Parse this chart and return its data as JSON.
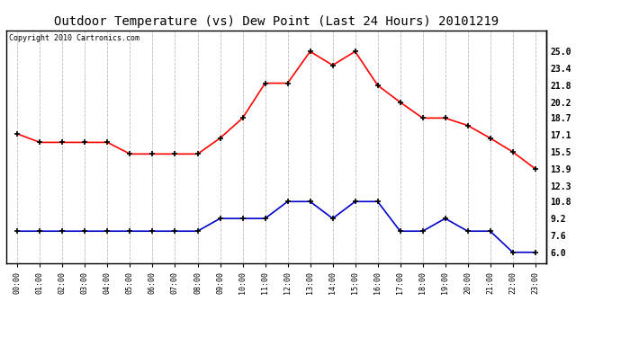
{
  "title": "Outdoor Temperature (vs) Dew Point (Last 24 Hours) 20101219",
  "copyright_text": "Copyright 2010 Cartronics.com",
  "x_labels": [
    "00:00",
    "01:00",
    "02:00",
    "03:00",
    "04:00",
    "05:00",
    "06:00",
    "07:00",
    "08:00",
    "09:00",
    "10:00",
    "11:00",
    "12:00",
    "13:00",
    "14:00",
    "15:00",
    "16:00",
    "17:00",
    "18:00",
    "19:00",
    "20:00",
    "21:00",
    "22:00",
    "23:00"
  ],
  "temp_data": [
    17.2,
    16.4,
    16.4,
    16.4,
    16.4,
    15.3,
    15.3,
    15.3,
    15.3,
    16.8,
    18.7,
    22.0,
    22.0,
    25.0,
    23.7,
    25.0,
    21.8,
    20.2,
    18.7,
    18.7,
    18.0,
    16.8,
    15.5,
    13.9
  ],
  "dew_data": [
    8.0,
    8.0,
    8.0,
    8.0,
    8.0,
    8.0,
    8.0,
    8.0,
    8.0,
    9.2,
    9.2,
    9.2,
    10.8,
    10.8,
    9.2,
    10.8,
    10.8,
    8.0,
    8.0,
    9.2,
    8.0,
    8.0,
    6.0,
    6.0
  ],
  "temp_color": "#FF0000",
  "dew_color": "#0000CC",
  "bg_color": "#FFFFFF",
  "plot_bg_color": "#FFFFFF",
  "grid_color": "#BBBBBB",
  "ylim": [
    5.0,
    27.0
  ],
  "yticks_right": [
    6.0,
    7.6,
    9.2,
    10.8,
    12.3,
    13.9,
    15.5,
    17.1,
    18.7,
    20.2,
    21.8,
    23.4,
    25.0
  ],
  "title_fontsize": 10,
  "copyright_fontsize": 6,
  "marker": "+",
  "markersize": 5,
  "markeredgewidth": 1.2,
  "linewidth": 1.2
}
